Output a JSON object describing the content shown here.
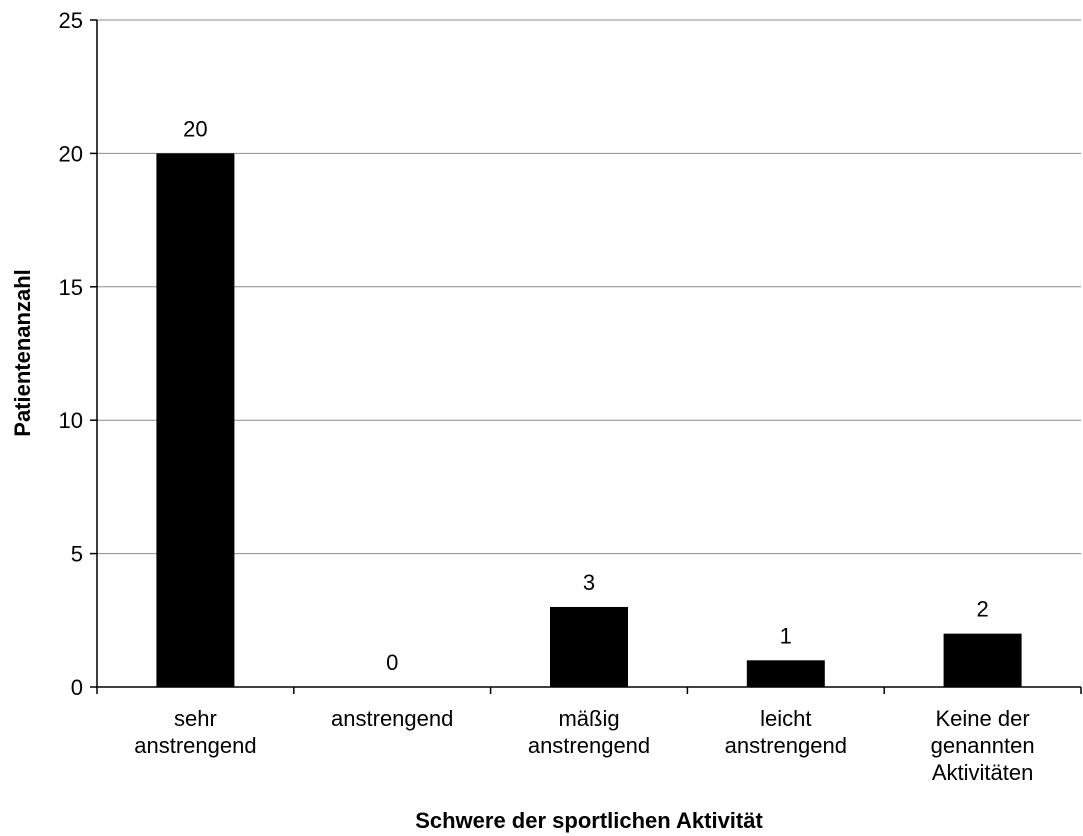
{
  "chart_data": {
    "type": "bar",
    "title": "",
    "xlabel": "Schwere der sportlichen Aktivität",
    "ylabel": "Patientenanzahl",
    "categories": [
      [
        "sehr",
        "anstrengend"
      ],
      [
        "anstrengend"
      ],
      [
        "mäßig",
        "anstrengend"
      ],
      [
        "leicht",
        "anstrengend"
      ],
      [
        "Keine der",
        "genannten",
        "Aktivitäten"
      ]
    ],
    "values": [
      20,
      0,
      3,
      1,
      2
    ],
    "data_labels": [
      "20",
      "0",
      "3",
      "1",
      "2"
    ],
    "ylim": [
      0,
      25
    ],
    "yticks": [
      0,
      5,
      10,
      15,
      20,
      25
    ],
    "grid": true,
    "legend": "none",
    "bar_color": "#000000",
    "grid_color": "#8c8c8c"
  }
}
